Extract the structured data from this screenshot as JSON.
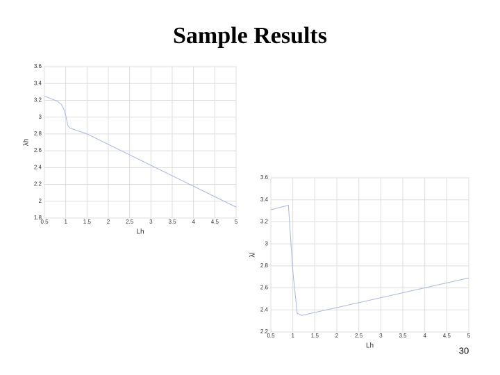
{
  "slide": {
    "title": "Sample Results",
    "page_number": "30"
  },
  "chart_data": [
    {
      "type": "line",
      "xlabel": "Lh",
      "ylabel": "λh",
      "x": [
        0.5,
        0.8,
        0.9,
        0.95,
        1.0,
        1.05,
        1.1,
        1.5,
        5
      ],
      "series": [
        {
          "color": "#a9b3e6",
          "values": [
            3.25,
            3.19,
            3.15,
            3.1,
            3.02,
            2.9,
            2.87,
            2.8,
            1.93
          ]
        }
      ],
      "xlim": [
        0.5,
        5
      ],
      "ylim": [
        1.8,
        3.6
      ],
      "xticks": [
        0.5,
        1,
        1.5,
        2,
        2.5,
        3,
        3.5,
        4,
        4.5,
        5
      ],
      "yticks": [
        1.8,
        2,
        2.2,
        2.4,
        2.6,
        2.8,
        3,
        3.2,
        3.4,
        3.6
      ],
      "grid": true
    },
    {
      "type": "line",
      "xlabel": "Lh",
      "ylabel": "λl",
      "x": [
        0.5,
        0.9,
        1.0,
        1.1,
        1.2,
        5
      ],
      "series": [
        {
          "color": "#a9b3e6",
          "values": [
            3.31,
            3.35,
            2.75,
            2.37,
            2.35,
            2.69
          ]
        }
      ],
      "xlim": [
        0.5,
        5
      ],
      "ylim": [
        2.2,
        3.6
      ],
      "xticks": [
        0.5,
        1,
        1.5,
        2,
        2.5,
        3,
        3.5,
        4,
        4.5,
        5
      ],
      "yticks": [
        2.2,
        2.4,
        2.6,
        2.8,
        3,
        3.2,
        3.4,
        3.6
      ],
      "grid": true
    }
  ]
}
